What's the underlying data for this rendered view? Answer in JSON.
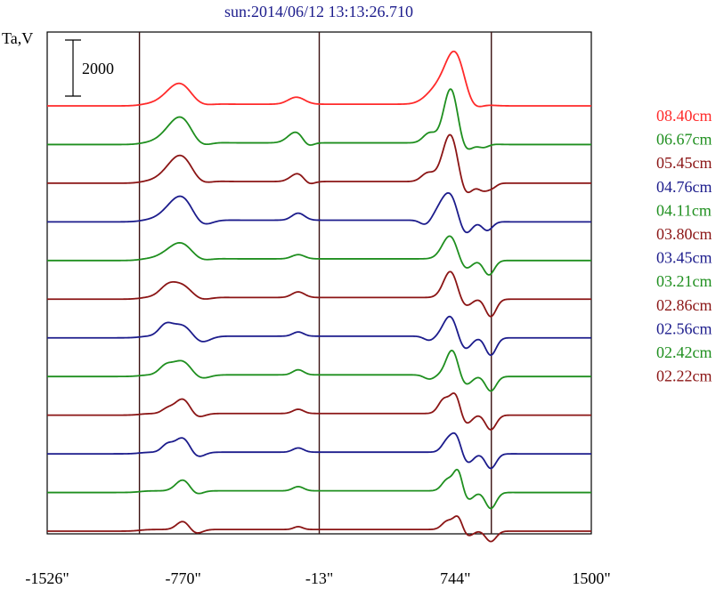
{
  "chart_data": {
    "type": "line",
    "title": "sun:2014/06/12 13:13:26.710",
    "ylabel": "Ta,V",
    "scale_bar_label": "2000",
    "scale_bar_value": 2000,
    "x_ticks": [
      {
        "value": -1526,
        "label": "-1526\""
      },
      {
        "value": -770,
        "label": "-770\""
      },
      {
        "value": -13,
        "label": "-13\""
      },
      {
        "value": 744,
        "label": "744\""
      },
      {
        "value": 1500,
        "label": "1500\""
      }
    ],
    "vlines": [
      -1013,
      -13,
      944
    ],
    "xlim": [
      -1526,
      1500
    ],
    "grid": false,
    "legend_position": "right",
    "series": [
      {
        "name": "08.40cm",
        "color": "#ff2a2a",
        "features": [
          [
            -770,
            900,
            80
          ],
          [
            -700,
            -400,
            60
          ],
          [
            -140,
            250,
            45
          ],
          [
            640,
            500,
            60
          ],
          [
            744,
            1800,
            55
          ],
          [
            830,
            -300,
            45
          ]
        ]
      },
      {
        "name": "06.67cm",
        "color": "#1f8f1f",
        "features": [
          [
            -770,
            1050,
            80
          ],
          [
            -690,
            -500,
            55
          ],
          [
            -140,
            400,
            45
          ],
          [
            -80,
            -200,
            30
          ],
          [
            600,
            350,
            35
          ],
          [
            720,
            2000,
            40
          ],
          [
            790,
            -400,
            40
          ],
          [
            900,
            -150,
            30
          ]
        ]
      },
      {
        "name": "05.45cm",
        "color": "#8b1515",
        "features": [
          [
            -770,
            1050,
            80
          ],
          [
            -690,
            -450,
            55
          ],
          [
            -130,
            300,
            40
          ],
          [
            -75,
            -150,
            30
          ],
          [
            590,
            300,
            35
          ],
          [
            720,
            1800,
            45
          ],
          [
            790,
            -700,
            40
          ],
          [
            900,
            -300,
            30
          ],
          [
            950,
            -150,
            25
          ]
        ]
      },
      {
        "name": "04.76cm",
        "color": "#1c1c8c",
        "features": [
          [
            -770,
            950,
            80
          ],
          [
            -680,
            -500,
            55
          ],
          [
            -130,
            250,
            35
          ],
          [
            580,
            -200,
            30
          ],
          [
            720,
            1100,
            60
          ],
          [
            790,
            -900,
            40
          ],
          [
            920,
            -350,
            30
          ]
        ]
      },
      {
        "name": "04.11cm",
        "color": "#1f8f1f",
        "features": [
          [
            -770,
            650,
            80
          ],
          [
            -690,
            -300,
            55
          ],
          [
            -130,
            150,
            35
          ],
          [
            720,
            900,
            45
          ],
          [
            790,
            -500,
            40
          ],
          [
            930,
            -550,
            30
          ]
        ]
      },
      {
        "name": "03.80cm",
        "color": "#8b1515",
        "features": [
          [
            -860,
            200,
            40
          ],
          [
            -770,
            550,
            80
          ],
          [
            -690,
            -300,
            55
          ],
          [
            -130,
            200,
            35
          ],
          [
            720,
            1000,
            40
          ],
          [
            790,
            -400,
            40
          ],
          [
            940,
            -650,
            30
          ]
        ]
      },
      {
        "name": "03.45cm",
        "color": "#1c1c8c",
        "features": [
          [
            -870,
            300,
            35
          ],
          [
            -770,
            450,
            70
          ],
          [
            -680,
            -350,
            50
          ],
          [
            -130,
            150,
            30
          ],
          [
            600,
            -150,
            30
          ],
          [
            720,
            800,
            40
          ],
          [
            790,
            -550,
            40
          ],
          [
            940,
            -650,
            30
          ]
        ]
      },
      {
        "name": "03.21cm",
        "color": "#1f8f1f",
        "features": [
          [
            -870,
            250,
            35
          ],
          [
            -770,
            550,
            60
          ],
          [
            -690,
            -250,
            50
          ],
          [
            -130,
            180,
            30
          ],
          [
            600,
            -150,
            30
          ],
          [
            730,
            1000,
            35
          ],
          [
            790,
            -450,
            40
          ],
          [
            940,
            -550,
            30
          ]
        ]
      },
      {
        "name": "02.86cm",
        "color": "#8b1515",
        "features": [
          [
            -860,
            150,
            30
          ],
          [
            -770,
            550,
            45
          ],
          [
            -700,
            -200,
            40
          ],
          [
            -130,
            150,
            30
          ],
          [
            680,
            500,
            30
          ],
          [
            745,
            750,
            28
          ],
          [
            800,
            -400,
            35
          ],
          [
            940,
            -550,
            30
          ]
        ]
      },
      {
        "name": "02.56cm",
        "color": "#1c1c8c",
        "features": [
          [
            -860,
            250,
            30
          ],
          [
            -770,
            550,
            45
          ],
          [
            -700,
            -250,
            40
          ],
          [
            -130,
            150,
            30
          ],
          [
            700,
            400,
            30
          ],
          [
            750,
            600,
            28
          ],
          [
            810,
            -400,
            35
          ],
          [
            940,
            -550,
            30
          ]
        ]
      },
      {
        "name": "02.42cm",
        "color": "#1f8f1f",
        "features": [
          [
            -770,
            400,
            40
          ],
          [
            -700,
            -150,
            35
          ],
          [
            -130,
            150,
            30
          ],
          [
            700,
            400,
            30
          ],
          [
            760,
            800,
            25
          ],
          [
            810,
            -350,
            35
          ],
          [
            940,
            -600,
            30
          ]
        ]
      },
      {
        "name": "02.22cm",
        "color": "#8b1515",
        "features": [
          [
            -770,
            300,
            35
          ],
          [
            -700,
            -150,
            35
          ],
          [
            -130,
            100,
            25
          ],
          [
            700,
            300,
            30
          ],
          [
            760,
            500,
            25
          ],
          [
            810,
            -250,
            35
          ],
          [
            940,
            -400,
            30
          ]
        ]
      }
    ]
  }
}
